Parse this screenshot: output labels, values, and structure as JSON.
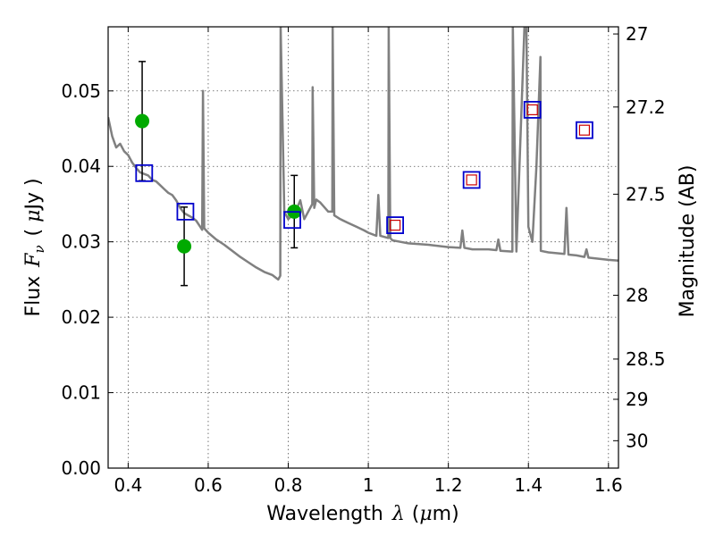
{
  "chart_data": {
    "type": "scatter",
    "title": "",
    "xlabel": "Wavelength",
    "xlabel_symbol": "λ",
    "xlabel_unit_open": "(",
    "xlabel_unit_mu": "μ",
    "xlabel_unit_rest": "m)",
    "ylabel": "Flux",
    "ylabel_symbol": "F",
    "ylabel_symbol_sub": "ν",
    "ylabel_unit_open": "( ",
    "ylabel_unit_mu": "μ",
    "ylabel_unit_rest": "Jy )",
    "y2label": "Magnitude (AB)",
    "xlim": [
      0.35,
      1.625
    ],
    "ylim": [
      0.0,
      0.0585
    ],
    "grid": true,
    "x_ticks": [
      0.4,
      0.6,
      0.8,
      1.0,
      1.2,
      1.4,
      1.6
    ],
    "x_tick_labels": [
      "0.4",
      "0.6",
      "0.8",
      "1",
      "1.2",
      "1.4",
      "1.6"
    ],
    "y_ticks": [
      0.0,
      0.01,
      0.02,
      0.03,
      0.04,
      0.05
    ],
    "y_tick_labels": [
      "0.00",
      "0.01",
      "0.02",
      "0.03",
      "0.04",
      "0.05"
    ],
    "y2_ticks": [
      27,
      27.2,
      27.5,
      28,
      28.5,
      29,
      30
    ],
    "y2_tick_labels": [
      "27",
      "27.2",
      "27.5",
      "28",
      "28.5",
      "29",
      "30"
    ],
    "series": [
      {
        "kind": "line",
        "color": "#808080",
        "x": [
          0.35,
          0.36,
          0.37,
          0.38,
          0.39,
          0.4,
          0.41,
          0.42,
          0.43,
          0.44,
          0.45,
          0.46,
          0.47,
          0.48,
          0.49,
          0.5,
          0.51,
          0.52,
          0.53,
          0.54,
          0.55,
          0.56,
          0.57,
          0.58,
          0.585,
          0.587,
          0.59,
          0.6,
          0.62,
          0.64,
          0.66,
          0.68,
          0.7,
          0.72,
          0.74,
          0.76,
          0.77,
          0.775,
          0.78,
          0.781,
          0.79,
          0.8,
          0.81,
          0.82,
          0.83,
          0.84,
          0.85,
          0.86,
          0.861,
          0.865,
          0.87,
          0.88,
          0.9,
          0.91,
          0.911,
          0.915,
          0.93,
          0.95,
          0.97,
          0.99,
          1.0,
          1.02,
          1.025,
          1.03,
          1.05,
          1.051,
          1.055,
          1.06,
          1.08,
          1.1,
          1.15,
          1.2,
          1.23,
          1.235,
          1.24,
          1.26,
          1.3,
          1.32,
          1.325,
          1.33,
          1.36,
          1.361,
          1.37,
          1.39,
          1.395,
          1.4,
          1.41,
          1.42,
          1.43,
          1.431,
          1.45,
          1.49,
          1.495,
          1.5,
          1.52,
          1.54,
          1.545,
          1.55,
          1.6,
          1.625
        ],
        "y": [
          0.0465,
          0.044,
          0.0425,
          0.043,
          0.042,
          0.0415,
          0.0405,
          0.0398,
          0.0392,
          0.039,
          0.0388,
          0.0382,
          0.038,
          0.0375,
          0.037,
          0.0365,
          0.0362,
          0.0355,
          0.0345,
          0.0338,
          0.0335,
          0.0332,
          0.0328,
          0.032,
          0.0316,
          0.05,
          0.0318,
          0.0312,
          0.0303,
          0.0296,
          0.0288,
          0.028,
          0.0273,
          0.0266,
          0.026,
          0.0256,
          0.0252,
          0.025,
          0.0255,
          0.0585,
          0.034,
          0.033,
          0.0335,
          0.0342,
          0.0355,
          0.033,
          0.034,
          0.035,
          0.0505,
          0.0345,
          0.0356,
          0.0352,
          0.034,
          0.034,
          0.0585,
          0.0335,
          0.033,
          0.0325,
          0.032,
          0.0315,
          0.0312,
          0.0308,
          0.0362,
          0.0308,
          0.0305,
          0.0585,
          0.0305,
          0.0302,
          0.03,
          0.0298,
          0.0296,
          0.0293,
          0.0292,
          0.0315,
          0.0292,
          0.029,
          0.029,
          0.0289,
          0.0303,
          0.0288,
          0.0287,
          0.0585,
          0.0287,
          0.0585,
          0.0585,
          0.032,
          0.03,
          0.04,
          0.0545,
          0.0288,
          0.0286,
          0.0284,
          0.0345,
          0.0283,
          0.0282,
          0.028,
          0.029,
          0.0279,
          0.0276,
          0.0275
        ]
      },
      {
        "kind": "points",
        "marker": "circle",
        "color": "#00aa00",
        "x": [
          0.435,
          0.54,
          0.815
        ],
        "y": [
          0.046,
          0.0294,
          0.034
        ],
        "yerr": [
          0.0079,
          0.0052,
          0.0048
        ]
      },
      {
        "kind": "points",
        "marker": "square-blue",
        "color": "#0000cc",
        "x": [
          0.44,
          0.543,
          0.81
        ],
        "y": [
          0.0391,
          0.034,
          0.0329
        ]
      },
      {
        "kind": "points",
        "marker": "square-blue-red",
        "color": "#0000cc",
        "inner_color": "#cc0000",
        "x": [
          1.067,
          1.258,
          1.41,
          1.54
        ],
        "y": [
          0.0322,
          0.0382,
          0.0475,
          0.0448
        ]
      }
    ]
  }
}
